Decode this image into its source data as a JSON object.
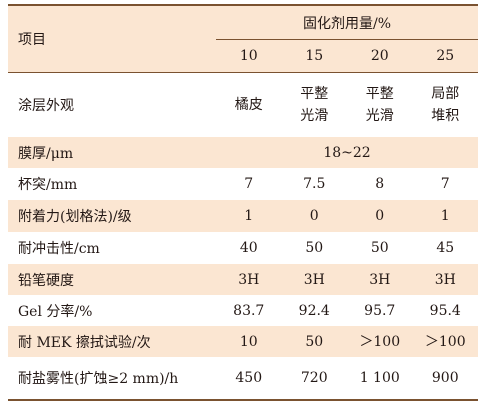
{
  "header": {
    "row_label": "项目",
    "group_label": "固化剂用量/%",
    "columns": [
      "10",
      "15",
      "20",
      "25"
    ]
  },
  "rows": [
    {
      "label": "涂层外观",
      "values": [
        [
          "橘皮"
        ],
        [
          "平整",
          "光滑"
        ],
        [
          "平整",
          "光滑"
        ],
        [
          "局部",
          "堆积"
        ]
      ],
      "shaded": false
    },
    {
      "label": "膜厚/μm",
      "span_value": "18~22",
      "shaded": true
    },
    {
      "label": "杯突/mm",
      "values": [
        [
          "7"
        ],
        [
          "7.5"
        ],
        [
          "8"
        ],
        [
          "7"
        ]
      ],
      "shaded": false
    },
    {
      "label": "附着力(划格法)/级",
      "values": [
        [
          "1"
        ],
        [
          "0"
        ],
        [
          "0"
        ],
        [
          "1"
        ]
      ],
      "shaded": true
    },
    {
      "label": "耐冲击性/cm",
      "values": [
        [
          "40"
        ],
        [
          "50"
        ],
        [
          "50"
        ],
        [
          "45"
        ]
      ],
      "shaded": false
    },
    {
      "label": "铅笔硬度",
      "values": [
        [
          "3H"
        ],
        [
          "3H"
        ],
        [
          "3H"
        ],
        [
          "3H"
        ]
      ],
      "shaded": true
    },
    {
      "label": "Gel 分率/%",
      "values": [
        [
          "83.7"
        ],
        [
          "92.4"
        ],
        [
          "95.7"
        ],
        [
          "95.4"
        ]
      ],
      "shaded": false
    },
    {
      "label": "耐 MEK 擦拭试验/次",
      "values": [
        [
          "10"
        ],
        [
          "50"
        ],
        [
          "＞100"
        ],
        [
          "＞100"
        ]
      ],
      "shaded": true
    },
    {
      "label": "耐盐雾性(扩蚀≥2 mm)/h",
      "values": [
        [
          "450"
        ],
        [
          "720"
        ],
        [
          "1 100"
        ],
        [
          "900"
        ]
      ],
      "shaded": false
    }
  ]
}
